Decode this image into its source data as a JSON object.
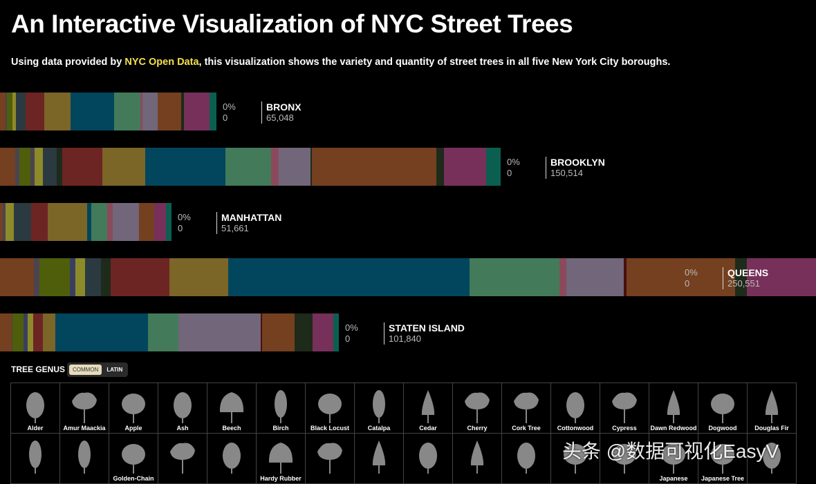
{
  "title": "An Interactive Visualization of NYC Street Trees",
  "subtitle": {
    "prefix": "Using data provided by ",
    "link": "NYC Open Data",
    "suffix": ", this visualization shows the variety and quantity of street trees in all five New York City boroughs."
  },
  "palette": {
    "brown": "#74401f",
    "gray": "#4b4350",
    "green": "#4e5e0a",
    "yellow": "#8d8a2a",
    "slate": "#2b3a40",
    "dark": "#1e2a1a",
    "red": "#6d2523",
    "olive": "#7b6527",
    "blue": "#02465e",
    "sea": "#437a5a",
    "pink": "#8a4a5c",
    "purple": "#72667a",
    "darkred": "#4a0f0f",
    "magenta": "#77305a",
    "teal": "#0b5f50",
    "navy": "#3a3f60"
  },
  "boroughs": [
    {
      "name": "BRONX",
      "count": "65,048",
      "total": 65048,
      "pct": "0%",
      "selected": "0",
      "segments": [
        [
          "brown",
          1664
        ],
        [
          "gray",
          416
        ],
        [
          "green",
          1664
        ],
        [
          "yellow",
          1040
        ],
        [
          "slate",
          2912
        ],
        [
          "red",
          5408
        ],
        [
          "olive",
          7904
        ],
        [
          "blue",
          12896
        ],
        [
          "sea",
          7904
        ],
        [
          "pink",
          624
        ],
        [
          "purple",
          4576
        ],
        [
          "brown",
          7072
        ],
        [
          "dark",
          832
        ],
        [
          "magenta",
          7488
        ],
        [
          "teal",
          2080
        ]
      ]
    },
    {
      "name": "BROOKLYN",
      "count": "150,514",
      "total": 150514,
      "pct": "0%",
      "selected": "0",
      "segments": [
        [
          "brown",
          4576
        ],
        [
          "gray",
          1248
        ],
        [
          "green",
          3328
        ],
        [
          "gray",
          1248
        ],
        [
          "yellow",
          2496
        ],
        [
          "slate",
          4160
        ],
        [
          "dark",
          1664
        ],
        [
          "red",
          12064
        ],
        [
          "olive",
          12896
        ],
        [
          "blue",
          24336
        ],
        [
          "sea",
          13728
        ],
        [
          "pink",
          2288
        ],
        [
          "purple",
          9568
        ],
        [
          "dark",
          416
        ],
        [
          "brown",
          37440
        ],
        [
          "dark",
          2288
        ],
        [
          "magenta",
          12688
        ],
        [
          "teal",
          4368
        ]
      ]
    },
    {
      "name": "MANHATTAN",
      "count": "51,661",
      "total": 51661,
      "pct": "0%",
      "selected": "0",
      "segments": [
        [
          "brown",
          832
        ],
        [
          "gray",
          832
        ],
        [
          "yellow",
          2496
        ],
        [
          "slate",
          4992
        ],
        [
          "red",
          4992
        ],
        [
          "olive",
          11856
        ],
        [
          "blue",
          1040
        ],
        [
          "sea",
          4784
        ],
        [
          "pink",
          1664
        ],
        [
          "purple",
          7904
        ],
        [
          "brown",
          4368
        ],
        [
          "magenta",
          3536
        ],
        [
          "teal",
          1664
        ]
      ]
    },
    {
      "name": "QUEENS",
      "count": "250,551",
      "total": 250551,
      "pct": "0%",
      "selected": "0",
      "segments": [
        [
          "brown",
          10400
        ],
        [
          "gray",
          1664
        ],
        [
          "green",
          9152
        ],
        [
          "navy",
          1664
        ],
        [
          "yellow",
          2912
        ],
        [
          "slate",
          4992
        ],
        [
          "dark",
          2912
        ],
        [
          "red",
          17888
        ],
        [
          "olive",
          17888
        ],
        [
          "blue",
          73424
        ],
        [
          "sea",
          27248
        ],
        [
          "pink",
          2080
        ],
        [
          "purple",
          17472
        ],
        [
          "darkred",
          832
        ],
        [
          "brown",
          33072
        ],
        [
          "dark",
          3536
        ],
        [
          "magenta",
          21000
        ]
      ]
    },
    {
      "name": "STATEN ISLAND",
      "count": "101,840",
      "total": 101840,
      "pct": "0%",
      "selected": "0",
      "segments": [
        [
          "brown",
          3536
        ],
        [
          "gray",
          208
        ],
        [
          "green",
          3328
        ],
        [
          "navy",
          1248
        ],
        [
          "yellow",
          1664
        ],
        [
          "red",
          2912
        ],
        [
          "olive",
          3744
        ],
        [
          "blue",
          27872
        ],
        [
          "sea",
          9152
        ],
        [
          "purple",
          24752
        ],
        [
          "darkred",
          416
        ],
        [
          "brown",
          9776
        ],
        [
          "dark",
          5408
        ],
        [
          "magenta",
          6240
        ],
        [
          "teal",
          1664
        ]
      ]
    }
  ],
  "genus": {
    "title": "TREE GENUS",
    "toggle": {
      "common": "COMMON",
      "latin": "LATIN",
      "active": "common"
    },
    "trees": [
      {
        "label": "Alder",
        "shape": "oval"
      },
      {
        "label": "Amur Maackia",
        "shape": "spread"
      },
      {
        "label": "Apple",
        "shape": "round"
      },
      {
        "label": "Ash",
        "shape": "oval"
      },
      {
        "label": "Beech",
        "shape": "wide"
      },
      {
        "label": "Birch",
        "shape": "narrow"
      },
      {
        "label": "Black Locust",
        "shape": "round"
      },
      {
        "label": "Catalpa",
        "shape": "narrow"
      },
      {
        "label": "Cedar",
        "shape": "cone"
      },
      {
        "label": "Cherry",
        "shape": "spread"
      },
      {
        "label": "Cork Tree",
        "shape": "spread"
      },
      {
        "label": "Cottonwood",
        "shape": "oval"
      },
      {
        "label": "Cypress",
        "shape": "spread"
      },
      {
        "label": "Dawn Redwood",
        "shape": "cone"
      },
      {
        "label": "Dogwood",
        "shape": "round"
      },
      {
        "label": "Douglas Fir",
        "shape": "cone"
      },
      {
        "label": "",
        "shape": "narrow"
      },
      {
        "label": "",
        "shape": "narrow"
      },
      {
        "label": "Golden-Chain",
        "shape": "round"
      },
      {
        "label": "",
        "shape": "spread"
      },
      {
        "label": "",
        "shape": "oval"
      },
      {
        "label": "Hardy Rubber",
        "shape": "wide"
      },
      {
        "label": "",
        "shape": "spread"
      },
      {
        "label": "",
        "shape": "cone"
      },
      {
        "label": "",
        "shape": "oval"
      },
      {
        "label": "",
        "shape": "cone"
      },
      {
        "label": "",
        "shape": "oval"
      },
      {
        "label": "",
        "shape": "round"
      },
      {
        "label": "",
        "shape": "round"
      },
      {
        "label": "Japanese",
        "shape": "round"
      },
      {
        "label": "Japanese Tree",
        "shape": "round"
      },
      {
        "label": "",
        "shape": "oval"
      }
    ]
  },
  "watermark": "头条 @数据可视化EasyV"
}
